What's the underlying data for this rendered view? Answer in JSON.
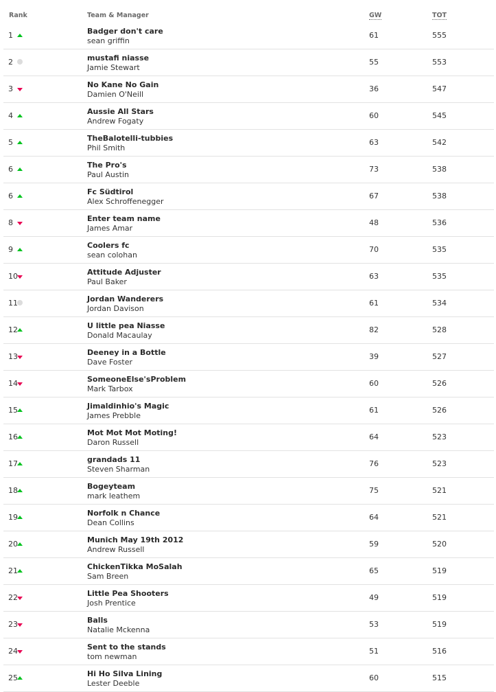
{
  "header": {
    "rank": "Rank",
    "team_manager": "Team & Manager",
    "gw": "GW",
    "tot": "TOT"
  },
  "colors": {
    "up": "#00c31e",
    "down": "#e90052",
    "same": "#dcdcdc"
  },
  "rows": [
    {
      "rank": "1",
      "move": "up",
      "team": "Badger don't care",
      "manager": "sean griffin",
      "gw": "61",
      "tot": "555"
    },
    {
      "rank": "2",
      "move": "same",
      "team": "mustafi niasse",
      "manager": "Jamie Stewart",
      "gw": "55",
      "tot": "553"
    },
    {
      "rank": "3",
      "move": "down",
      "team": "No Kane No Gain",
      "manager": "Damien O'Neill",
      "gw": "36",
      "tot": "547"
    },
    {
      "rank": "4",
      "move": "up",
      "team": "Aussie All Stars",
      "manager": "Andrew Fogaty",
      "gw": "60",
      "tot": "545"
    },
    {
      "rank": "5",
      "move": "up",
      "team": "TheBalotelli-tubbies",
      "manager": "Phil Smith",
      "gw": "63",
      "tot": "542"
    },
    {
      "rank": "6",
      "move": "up",
      "team": "The Pro's",
      "manager": "Paul Austin",
      "gw": "73",
      "tot": "538"
    },
    {
      "rank": "6",
      "move": "up",
      "team": "Fc Südtirol",
      "manager": "Alex Schroffenegger",
      "gw": "67",
      "tot": "538"
    },
    {
      "rank": "8",
      "move": "down",
      "team": "Enter team name",
      "manager": "James Amar",
      "gw": "48",
      "tot": "536"
    },
    {
      "rank": "9",
      "move": "up",
      "team": "Coolers fc",
      "manager": "sean colohan",
      "gw": "70",
      "tot": "535"
    },
    {
      "rank": "10",
      "move": "down",
      "team": "Attitude Adjuster",
      "manager": "Paul Baker",
      "gw": "63",
      "tot": "535"
    },
    {
      "rank": "11",
      "move": "same",
      "team": "Jordan Wanderers",
      "manager": "Jordan Davison",
      "gw": "61",
      "tot": "534"
    },
    {
      "rank": "12",
      "move": "up",
      "team": "U little pea Niasse",
      "manager": "Donald Macaulay",
      "gw": "82",
      "tot": "528"
    },
    {
      "rank": "13",
      "move": "down",
      "team": "Deeney in a Bottle",
      "manager": "Dave Foster",
      "gw": "39",
      "tot": "527"
    },
    {
      "rank": "14",
      "move": "down",
      "team": "SomeoneElse'sProblem",
      "manager": "Mark Tarbox",
      "gw": "60",
      "tot": "526"
    },
    {
      "rank": "15",
      "move": "up",
      "team": "Jimaldinhio's Magic",
      "manager": "James Prebble",
      "gw": "61",
      "tot": "526"
    },
    {
      "rank": "16",
      "move": "up",
      "team": "Mot Mot Mot Moting!",
      "manager": "Daron Russell",
      "gw": "64",
      "tot": "523"
    },
    {
      "rank": "17",
      "move": "up",
      "team": "grandads 11",
      "manager": "Steven Sharman",
      "gw": "76",
      "tot": "523"
    },
    {
      "rank": "18",
      "move": "up",
      "team": "Bogeyteam",
      "manager": "mark leathem",
      "gw": "75",
      "tot": "521"
    },
    {
      "rank": "19",
      "move": "up",
      "team": "Norfolk n Chance",
      "manager": "Dean Collins",
      "gw": "64",
      "tot": "521"
    },
    {
      "rank": "20",
      "move": "up",
      "team": "Munich May 19th 2012",
      "manager": "Andrew Russell",
      "gw": "59",
      "tot": "520"
    },
    {
      "rank": "21",
      "move": "up",
      "team": "ChickenTikka MoSalah",
      "manager": "Sam Breen",
      "gw": "65",
      "tot": "519"
    },
    {
      "rank": "22",
      "move": "down",
      "team": "Little Pea Shooters",
      "manager": "Josh Prentice",
      "gw": "49",
      "tot": "519"
    },
    {
      "rank": "23",
      "move": "down",
      "team": "Balls",
      "manager": "Natalie Mckenna",
      "gw": "53",
      "tot": "519"
    },
    {
      "rank": "24",
      "move": "down",
      "team": "Sent to the stands",
      "manager": "tom newman",
      "gw": "51",
      "tot": "516"
    },
    {
      "rank": "25",
      "move": "up",
      "team": "Hi Ho Silva Lining",
      "manager": "Lester Deeble",
      "gw": "60",
      "tot": "515"
    }
  ]
}
